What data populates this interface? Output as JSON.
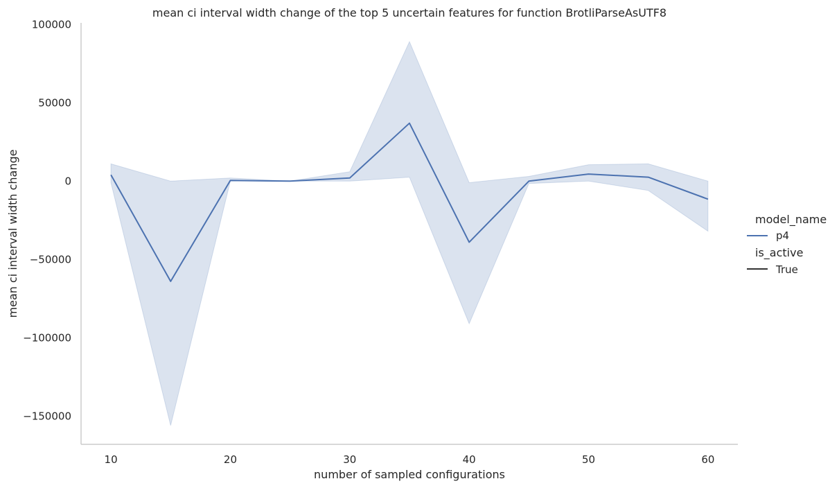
{
  "chart_data": {
    "type": "line",
    "title": "mean ci interval width change of the top 5 uncertain features for function BrotliParseAsUTF8",
    "xlabel": "number of sampled configurations",
    "ylabel": "mean ci interval width change",
    "xlim": [
      7.5,
      62.5
    ],
    "ylim": [
      -168000,
      101000
    ],
    "xticks": [
      10,
      20,
      30,
      40,
      50,
      60
    ],
    "yticks": [
      100000,
      50000,
      0,
      -50000,
      -100000,
      -150000
    ],
    "ytick_labels": [
      "100000",
      "50000",
      "0",
      "−50000",
      "−100000",
      "−150000"
    ],
    "grid": false,
    "x": [
      10,
      15,
      20,
      25,
      30,
      35,
      40,
      45,
      50,
      55,
      60
    ],
    "series": [
      {
        "name": "p4",
        "color": "#4c72b0",
        "values": [
          4000,
          -64000,
          500,
          0,
          2000,
          37000,
          -39000,
          0,
          4500,
          2500,
          -11500
        ],
        "ci_upper": [
          11000,
          0,
          2000,
          0,
          6000,
          89000,
          -1000,
          3000,
          10500,
          11000,
          0
        ],
        "ci_lower": [
          -1000,
          -156000,
          0,
          0,
          0,
          2500,
          -91000,
          -1500,
          0,
          -6000,
          -32000
        ]
      }
    ],
    "legend": {
      "placement": "right",
      "hue_title": "model_name",
      "hue_entries": [
        "p4"
      ],
      "style_title": "is_active",
      "style_entries": [
        "True"
      ]
    }
  }
}
